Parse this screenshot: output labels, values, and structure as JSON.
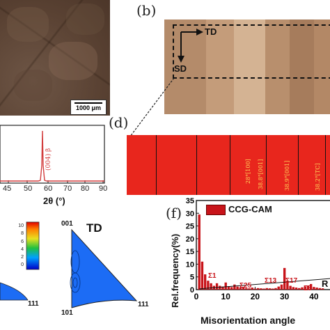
{
  "panel_a": {
    "scale_bar": "1000 μm"
  },
  "panel_b": {
    "label": "(b)",
    "td_label": "TD",
    "sd_label": "SD"
  },
  "panel_c": {
    "xlabel": "2θ (°)",
    "ticks": [
      "45",
      "50",
      "60",
      "70",
      "80",
      "90"
    ],
    "peak_label": "(004) β"
  },
  "panel_d": {
    "label": "(d)",
    "annotations": [
      "28°[100]",
      "38.8°[001]",
      "38.9°[001]",
      "38.2°[TC]"
    ]
  },
  "panel_e": {
    "title": "TD",
    "colorbar_ticks": [
      "10",
      "8",
      "6",
      "4",
      "2",
      "0"
    ],
    "corner_labels": [
      "001",
      "101",
      "111",
      "111"
    ]
  },
  "panel_f": {
    "label": "(f)",
    "legend": "CCG-CAM",
    "ylabel": "Rel.frequency(%)",
    "xlabel": "Misorientation angle",
    "annotations": [
      "Σ1",
      "Σ25",
      "Σ13",
      "Σ17",
      "Σ5",
      "R"
    ],
    "chart_data": {
      "type": "bar",
      "x": [
        1,
        2,
        3,
        4,
        5,
        6,
        7,
        8,
        9,
        10,
        11,
        12,
        13,
        14,
        15,
        16,
        17,
        18,
        19,
        20,
        21,
        22,
        23,
        24,
        25,
        26,
        27,
        28,
        29,
        30,
        31,
        32,
        33,
        34,
        35,
        36,
        37,
        38,
        39,
        40,
        41,
        42,
        43
      ],
      "values": [
        29.5,
        11,
        6,
        3.5,
        2.5,
        1.5,
        2.5,
        1.5,
        1.2,
        2.8,
        1.3,
        1.0,
        2.0,
        1.2,
        0.8,
        1.0,
        0.6,
        0.5,
        0.8,
        0.4,
        0.6,
        0.5,
        0.4,
        0.6,
        0.5,
        0.4,
        0.6,
        1.2,
        2.0,
        8.5,
        3.5,
        1.5,
        1.0,
        0.8,
        0.6,
        0.9,
        1.2,
        1.6,
        2.2,
        1.0,
        0.8,
        0.6,
        0.5
      ],
      "xlim": [
        0,
        45
      ],
      "ylim": [
        0,
        35
      ],
      "yticks": [
        0,
        5,
        10,
        15,
        20,
        25,
        30,
        35
      ],
      "xticks": [
        0,
        10,
        20,
        30,
        40
      ],
      "series_name": "CCG-CAM"
    }
  }
}
